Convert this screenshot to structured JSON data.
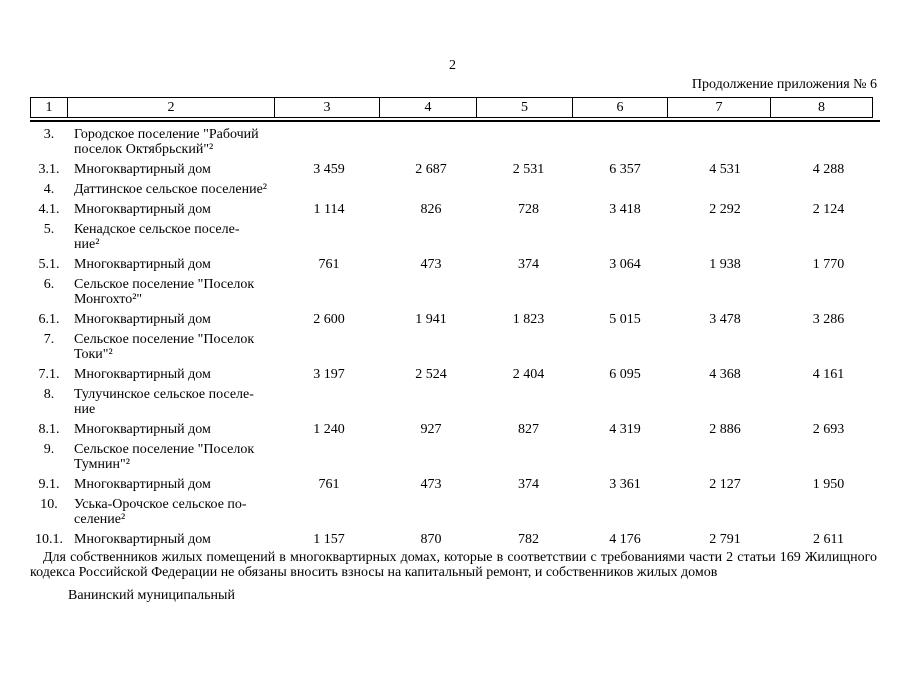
{
  "page": {
    "number": "2",
    "continuation": "Продолжение приложения № 6"
  },
  "table": {
    "header": [
      "1",
      "2",
      "3",
      "4",
      "5",
      "6",
      "7",
      "8"
    ],
    "rows": [
      {
        "num": "3.",
        "label_lines": [
          "Городское поселение \"Рабочий",
          "поселок Октябрьский\"²"
        ],
        "values": []
      },
      {
        "num": "3.1.",
        "label_lines": [
          "Многоквартирный дом"
        ],
        "values": [
          "3 459",
          "2 687",
          "2 531",
          "6 357",
          "4 531",
          "4 288"
        ]
      },
      {
        "num": "4.",
        "label_lines": [
          "Даттинское сельское поселение²"
        ],
        "values": []
      },
      {
        "num": "4.1.",
        "label_lines": [
          "Многоквартирный дом"
        ],
        "values": [
          "1 114",
          "826",
          "728",
          "3 418",
          "2 292",
          "2 124"
        ]
      },
      {
        "num": "5.",
        "label_lines": [
          "Кенадское сельское поселе-",
          "ние²"
        ],
        "values": []
      },
      {
        "num": "5.1.",
        "label_lines": [
          "Многоквартирный дом"
        ],
        "values": [
          "761",
          "473",
          "374",
          "3 064",
          "1 938",
          "1 770"
        ]
      },
      {
        "num": "6.",
        "label_lines": [
          "Сельское поселение \"Поселок",
          "Монгохто²\""
        ],
        "values": []
      },
      {
        "num": "6.1.",
        "label_lines": [
          "Многоквартирный дом"
        ],
        "values": [
          "2 600",
          "1 941",
          "1 823",
          "5 015",
          "3 478",
          "3 286"
        ]
      },
      {
        "num": "7.",
        "label_lines": [
          "Сельское поселение \"Поселок",
          "Токи\"²"
        ],
        "values": []
      },
      {
        "num": "7.1.",
        "label_lines": [
          "Многоквартирный дом"
        ],
        "values": [
          "3 197",
          "2 524",
          "2 404",
          "6 095",
          "4 368",
          "4 161"
        ]
      },
      {
        "num": "8.",
        "label_lines": [
          "Тулучинское сельское поселе-",
          "ние"
        ],
        "values": []
      },
      {
        "num": "8.1.",
        "label_lines": [
          "Многоквартирный дом"
        ],
        "values": [
          "1 240",
          "927",
          "827",
          "4 319",
          "2 886",
          "2 693"
        ]
      },
      {
        "num": "9.",
        "label_lines": [
          "Сельское поселение \"Поселок",
          "Тумнин\"²"
        ],
        "values": []
      },
      {
        "num": "9.1.",
        "label_lines": [
          "Многоквартирный дом"
        ],
        "values": [
          "761",
          "473",
          "374",
          "3 361",
          "2 127",
          "1 950"
        ]
      },
      {
        "num": "10.",
        "label_lines": [
          "Уська-Орочское сельское по-",
          "селение²"
        ],
        "values": []
      },
      {
        "num": "10.1.",
        "label_lines": [
          "Многоквартирный дом"
        ],
        "values": [
          "1 157",
          "870",
          "782",
          "4 176",
          "2 791",
          "2 611"
        ]
      }
    ]
  },
  "footer": {
    "note": "Для собственников жилых помещений в многоквартирных домах, которые в соответствии с требованиями части 2 статьи 169 Жилищного кодекса Российской Федерации не обязаны вносить взносы на капитальный ремонт, и собственников жилых домов",
    "signature": "Ванинский муниципальный"
  }
}
